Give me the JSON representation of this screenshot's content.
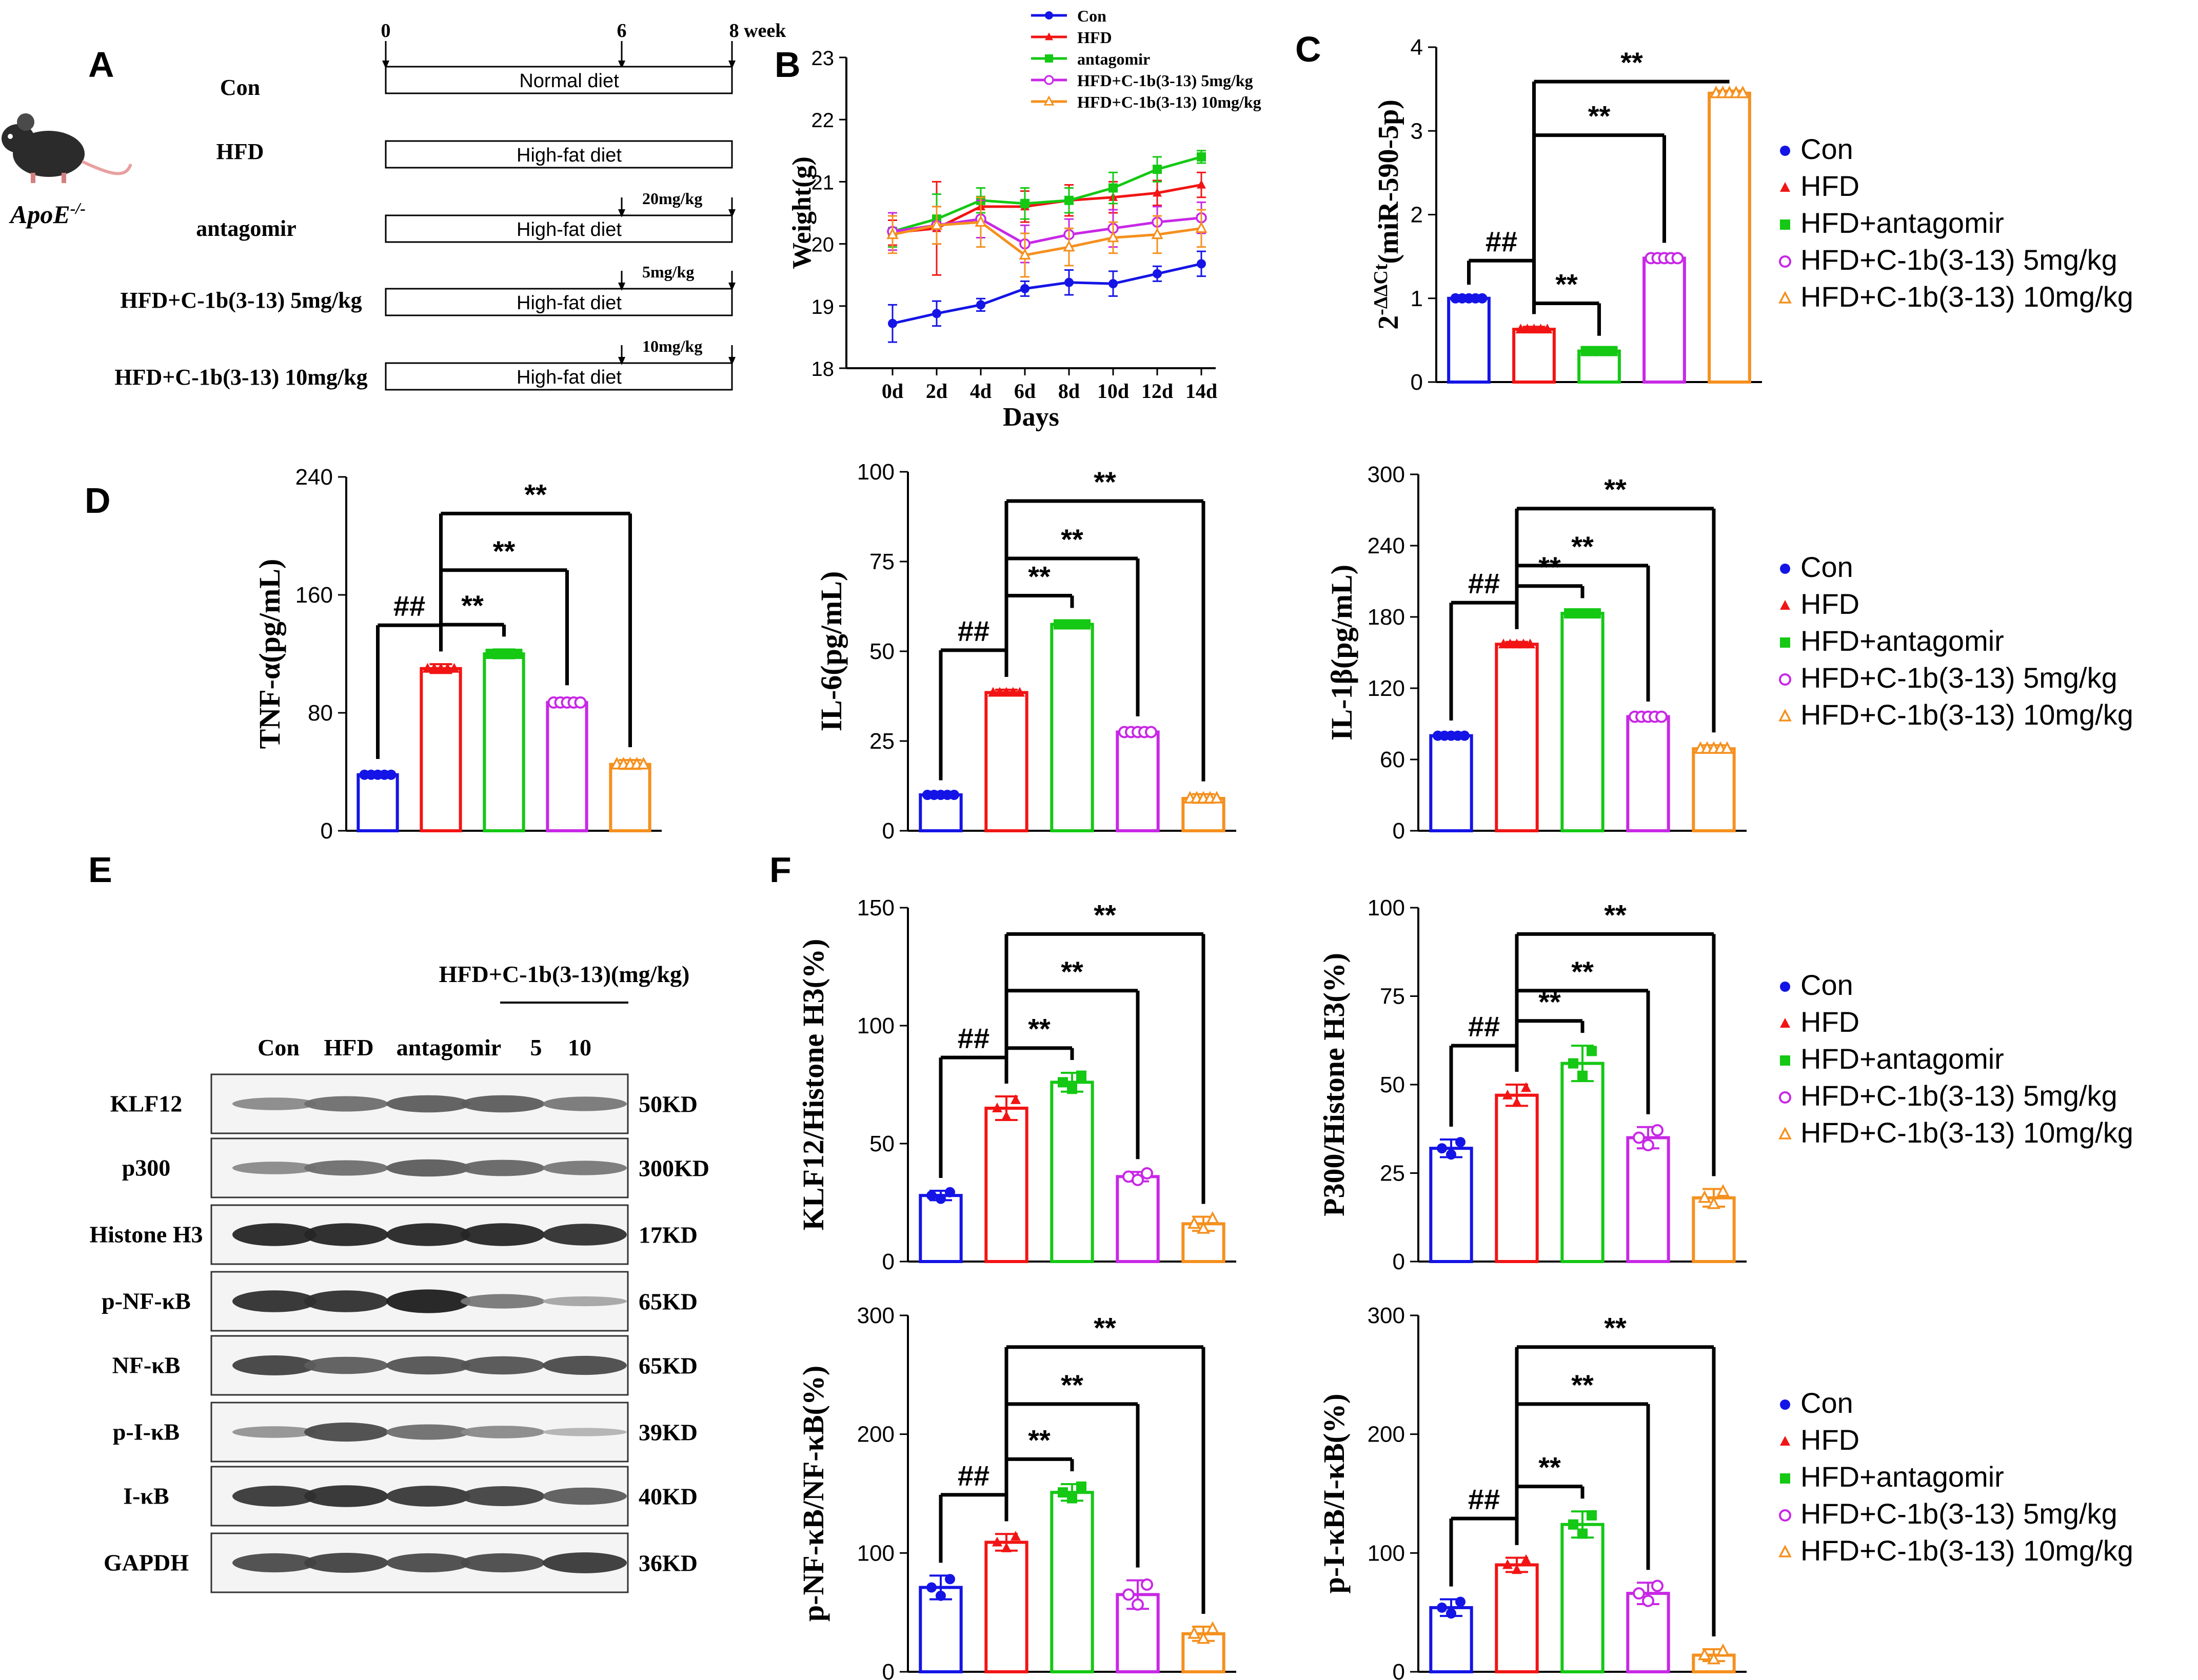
{
  "colors": {
    "con": "#1414e6",
    "hfd": "#f21414",
    "antagomir": "#14c814",
    "low": "#c828e6",
    "high": "#f5901e"
  },
  "legend": {
    "items": [
      "Con",
      "HFD",
      "HFD+antagomir",
      "HFD+C-1b(3-13) 5mg/kg",
      "HFD+C-1b(3-13) 10mg/kg"
    ],
    "markers": [
      "dot",
      "triangle",
      "square",
      "circle-open",
      "triangle-open"
    ],
    "colors": [
      "#1414e6",
      "#f21414",
      "#14c814",
      "#c828e6",
      "#f5901e"
    ]
  },
  "panel_a": {
    "label": "A",
    "mouse_caption": "ApoE-/-",
    "mouse_caption_base": "ApoE",
    "mouse_caption_sup": "-/-",
    "timeline_ticks": [
      "0",
      "6",
      "8 week"
    ],
    "groups": [
      {
        "name": "Con",
        "diet": "Normal diet",
        "dose": ""
      },
      {
        "name": "HFD",
        "diet": "High-fat diet",
        "dose": ""
      },
      {
        "name": "antagomir",
        "diet": "High-fat diet",
        "dose": "20mg/kg"
      },
      {
        "name": "HFD+C-1b(3-13) 5mg/kg",
        "diet": "High-fat diet",
        "dose": "5mg/kg"
      },
      {
        "name": "HFD+C-1b(3-13) 10mg/kg",
        "diet": "High-fat diet",
        "dose": "10mg/kg"
      }
    ]
  },
  "panel_e": {
    "label": "E",
    "treatment_header": "HFD+C-1b(3-13)(mg/kg)",
    "lane_labels": [
      "Con",
      "HFD",
      "antagomir",
      "5",
      "10"
    ],
    "blots": [
      {
        "protein": "KLF12",
        "size": "50KD",
        "intensity": [
          0.35,
          0.5,
          0.6,
          0.6,
          0.45
        ]
      },
      {
        "protein": "p300",
        "size": "300KD",
        "intensity": [
          0.35,
          0.5,
          0.6,
          0.55,
          0.45
        ]
      },
      {
        "protein": "Histone H3",
        "size": "17KD",
        "intensity": [
          0.9,
          0.9,
          0.9,
          0.9,
          0.85
        ]
      },
      {
        "protein": "p-NF-κB",
        "size": "65KD",
        "intensity": [
          0.85,
          0.85,
          0.95,
          0.45,
          0.2
        ]
      },
      {
        "protein": "NF-κB",
        "size": "65KD",
        "intensity": [
          0.75,
          0.6,
          0.65,
          0.65,
          0.7
        ]
      },
      {
        "protein": "p-I-κB",
        "size": "39KD",
        "intensity": [
          0.3,
          0.7,
          0.5,
          0.35,
          0.12
        ]
      },
      {
        "protein": "I-κB",
        "size": "40KD",
        "intensity": [
          0.8,
          0.85,
          0.8,
          0.75,
          0.6
        ]
      },
      {
        "protein": "GAPDH",
        "size": "36KD",
        "intensity": [
          0.7,
          0.75,
          0.7,
          0.7,
          0.8
        ]
      }
    ]
  },
  "chart_data": [
    {
      "id": "B",
      "label": "B",
      "type": "line",
      "xlabel": "Days",
      "ylabel": "Weight(g)",
      "categories": [
        "0d",
        "2d",
        "4d",
        "6d",
        "8d",
        "10d",
        "12d",
        "14d"
      ],
      "ylim": [
        18,
        23
      ],
      "yticks": [
        18,
        19,
        20,
        21,
        22,
        23
      ],
      "legend": [
        "Con",
        "HFD",
        "antagomir",
        "HFD+C-1b(3-13)  5mg/kg",
        "HFD+C-1b(3-13)  10mg/kg"
      ],
      "series": [
        {
          "name": "Con",
          "values": [
            18.72,
            18.88,
            19.02,
            19.28,
            19.38,
            19.36,
            19.52,
            19.68
          ],
          "err": [
            0.3,
            0.2,
            0.1,
            0.12,
            0.2,
            0.2,
            0.12,
            0.2
          ]
        },
        {
          "name": "HFD",
          "values": [
            20.18,
            20.25,
            20.6,
            20.6,
            20.7,
            20.75,
            20.82,
            20.95
          ],
          "err": [
            0.2,
            0.75,
            0.3,
            0.25,
            0.25,
            0.25,
            0.2,
            0.2
          ]
        },
        {
          "name": "antagomir",
          "values": [
            20.2,
            20.4,
            20.7,
            20.65,
            20.7,
            20.9,
            21.2,
            21.4
          ],
          "err": [
            0.25,
            0.4,
            0.2,
            0.25,
            0.2,
            0.25,
            0.2,
            0.1
          ]
        },
        {
          "name": "HFD+C-1b(3-13)  5mg/kg",
          "values": [
            20.2,
            20.3,
            20.4,
            20.0,
            20.15,
            20.25,
            20.35,
            20.42
          ],
          "err": [
            0.3,
            0.3,
            0.3,
            0.3,
            0.25,
            0.3,
            0.25,
            0.25
          ]
        },
        {
          "name": "HFD+C-1b(3-13)  10mg/kg",
          "values": [
            20.15,
            20.3,
            20.35,
            19.82,
            19.95,
            20.1,
            20.15,
            20.25
          ],
          "err": [
            0.3,
            0.3,
            0.4,
            0.35,
            0.3,
            0.25,
            0.3,
            0.3
          ]
        }
      ]
    },
    {
      "id": "C",
      "label": "C",
      "type": "bar",
      "ylabel": "2-ΔΔCt(miR-590-5p)",
      "ylabel_base": "2",
      "ylabel_sup": "-ΔΔCt",
      "ylabel_rest": "(miR-590-5p)",
      "categories": [
        "Con",
        "HFD",
        "HFD+antagomir",
        "HFD+C-1b(3-13) 5mg/kg",
        "HFD+C-1b(3-13) 10mg/kg"
      ],
      "values": [
        1.0,
        0.63,
        0.37,
        1.48,
        3.45
      ],
      "err": [
        0.01,
        0.03,
        0.03,
        0.03,
        0.03
      ],
      "ylim": [
        0,
        4
      ],
      "yticks": [
        0,
        1,
        2,
        3,
        4
      ],
      "significance": [
        {
          "from": 0,
          "to": 1,
          "label": "##"
        },
        {
          "from": 1,
          "to": 2,
          "label": "**"
        },
        {
          "from": 1,
          "to": 3,
          "label": "**"
        },
        {
          "from": 1,
          "to": 4,
          "label": "**"
        }
      ]
    },
    {
      "id": "D1",
      "label": "D",
      "type": "bar",
      "ylabel": "TNF-α(pg/mL)",
      "categories": [
        "Con",
        "HFD",
        "HFD+antagomir",
        "HFD+C-1b(3-13) 5mg/kg",
        "HFD+C-1b(3-13) 10mg/kg"
      ],
      "values": [
        38,
        110,
        120,
        87,
        45
      ],
      "err": [
        2,
        3,
        3,
        3,
        3
      ],
      "ylim": [
        0,
        240
      ],
      "yticks": [
        0,
        80,
        160,
        240
      ],
      "significance": [
        {
          "from": 0,
          "to": 1,
          "label": "##"
        },
        {
          "from": 1,
          "to": 2,
          "label": "**"
        },
        {
          "from": 1,
          "to": 3,
          "label": "**"
        },
        {
          "from": 1,
          "to": 4,
          "label": "**"
        }
      ]
    },
    {
      "id": "D2",
      "label": "",
      "type": "bar",
      "ylabel": "IL-6(pg/mL)",
      "categories": [
        "Con",
        "HFD",
        "HFD+antagomir",
        "HFD+C-1b(3-13) 5mg/kg",
        "HFD+C-1b(3-13) 10mg/kg"
      ],
      "values": [
        10,
        38.5,
        57.5,
        27.5,
        9
      ],
      "err": [
        0.5,
        0.8,
        1,
        0.8,
        1.2
      ],
      "ylim": [
        0,
        100
      ],
      "yticks": [
        0,
        25,
        50,
        75,
        100
      ],
      "significance": [
        {
          "from": 0,
          "to": 1,
          "label": "##"
        },
        {
          "from": 1,
          "to": 2,
          "label": "**"
        },
        {
          "from": 1,
          "to": 3,
          "label": "**"
        },
        {
          "from": 1,
          "to": 4,
          "label": "**"
        }
      ]
    },
    {
      "id": "D3",
      "label": "",
      "type": "bar",
      "ylabel": "IL-1β(pg/mL)",
      "categories": [
        "Con",
        "HFD",
        "HFD+antagomir",
        "HFD+C-1b(3-13) 5mg/kg",
        "HFD+C-1b(3-13) 10mg/kg"
      ],
      "values": [
        80,
        157,
        183,
        96,
        69
      ],
      "err": [
        2,
        2,
        2,
        2,
        3
      ],
      "ylim": [
        0,
        300
      ],
      "yticks": [
        0,
        60,
        120,
        180,
        240,
        300
      ],
      "significance": [
        {
          "from": 0,
          "to": 1,
          "label": "##"
        },
        {
          "from": 1,
          "to": 2,
          "label": "**"
        },
        {
          "from": 1,
          "to": 3,
          "label": "**"
        },
        {
          "from": 1,
          "to": 4,
          "label": "**"
        }
      ]
    },
    {
      "id": "F1",
      "label": "F",
      "type": "bar",
      "ylabel": "KLF12/Histone H3(%)",
      "categories": [
        "Con",
        "HFD",
        "HFD+antagomir",
        "HFD+C-1b(3-13) 5mg/kg",
        "HFD+C-1b(3-13) 10mg/kg"
      ],
      "values": [
        28,
        65,
        76,
        36,
        16
      ],
      "err": [
        2,
        5,
        4,
        2,
        3
      ],
      "ylim": [
        0,
        150
      ],
      "yticks": [
        0,
        50,
        100,
        150
      ],
      "significance": [
        {
          "from": 0,
          "to": 1,
          "label": "##"
        },
        {
          "from": 1,
          "to": 2,
          "label": "**"
        },
        {
          "from": 1,
          "to": 3,
          "label": "**"
        },
        {
          "from": 1,
          "to": 4,
          "label": "**"
        }
      ]
    },
    {
      "id": "F2",
      "label": "",
      "type": "bar",
      "ylabel": "P300/Histone H3(%)",
      "categories": [
        "Con",
        "HFD",
        "HFD+antagomir",
        "HFD+C-1b(3-13) 5mg/kg",
        "HFD+C-1b(3-13) 10mg/kg"
      ],
      "values": [
        32,
        47,
        56,
        35,
        18
      ],
      "err": [
        2.5,
        3,
        5,
        3,
        2.5
      ],
      "ylim": [
        0,
        100
      ],
      "yticks": [
        0,
        25,
        50,
        75,
        100
      ],
      "significance": [
        {
          "from": 0,
          "to": 1,
          "label": "##"
        },
        {
          "from": 1,
          "to": 2,
          "label": "**"
        },
        {
          "from": 1,
          "to": 3,
          "label": "**"
        },
        {
          "from": 1,
          "to": 4,
          "label": "**"
        }
      ]
    },
    {
      "id": "F3",
      "label": "",
      "type": "bar",
      "ylabel": "p-NF-κB/NF-κB(%)",
      "categories": [
        "Con",
        "HFD",
        "HFD+antagomir",
        "HFD+C-1b(3-13) 5mg/kg",
        "HFD+C-1b(3-13) 10mg/kg"
      ],
      "values": [
        71,
        109,
        151,
        65,
        32
      ],
      "err": [
        10,
        7,
        7,
        12,
        6
      ],
      "ylim": [
        0,
        300
      ],
      "yticks": [
        0,
        100,
        200,
        300
      ],
      "significance": [
        {
          "from": 0,
          "to": 1,
          "label": "##"
        },
        {
          "from": 1,
          "to": 2,
          "label": "**"
        },
        {
          "from": 1,
          "to": 3,
          "label": "**"
        },
        {
          "from": 1,
          "to": 4,
          "label": "**"
        }
      ]
    },
    {
      "id": "F4",
      "label": "",
      "type": "bar",
      "ylabel": "p-I-κB/I-κB(%)",
      "categories": [
        "Con",
        "HFD",
        "HFD+antagomir",
        "HFD+C-1b(3-13) 5mg/kg",
        "HFD+C-1b(3-13) 10mg/kg"
      ],
      "values": [
        54,
        90,
        124,
        66,
        14
      ],
      "err": [
        7,
        6,
        11,
        9,
        5
      ],
      "ylim": [
        0,
        300
      ],
      "yticks": [
        0,
        100,
        200,
        300
      ],
      "significance": [
        {
          "from": 0,
          "to": 1,
          "label": "##"
        },
        {
          "from": 1,
          "to": 2,
          "label": "**"
        },
        {
          "from": 1,
          "to": 3,
          "label": "**"
        },
        {
          "from": 1,
          "to": 4,
          "label": "**"
        }
      ]
    }
  ]
}
